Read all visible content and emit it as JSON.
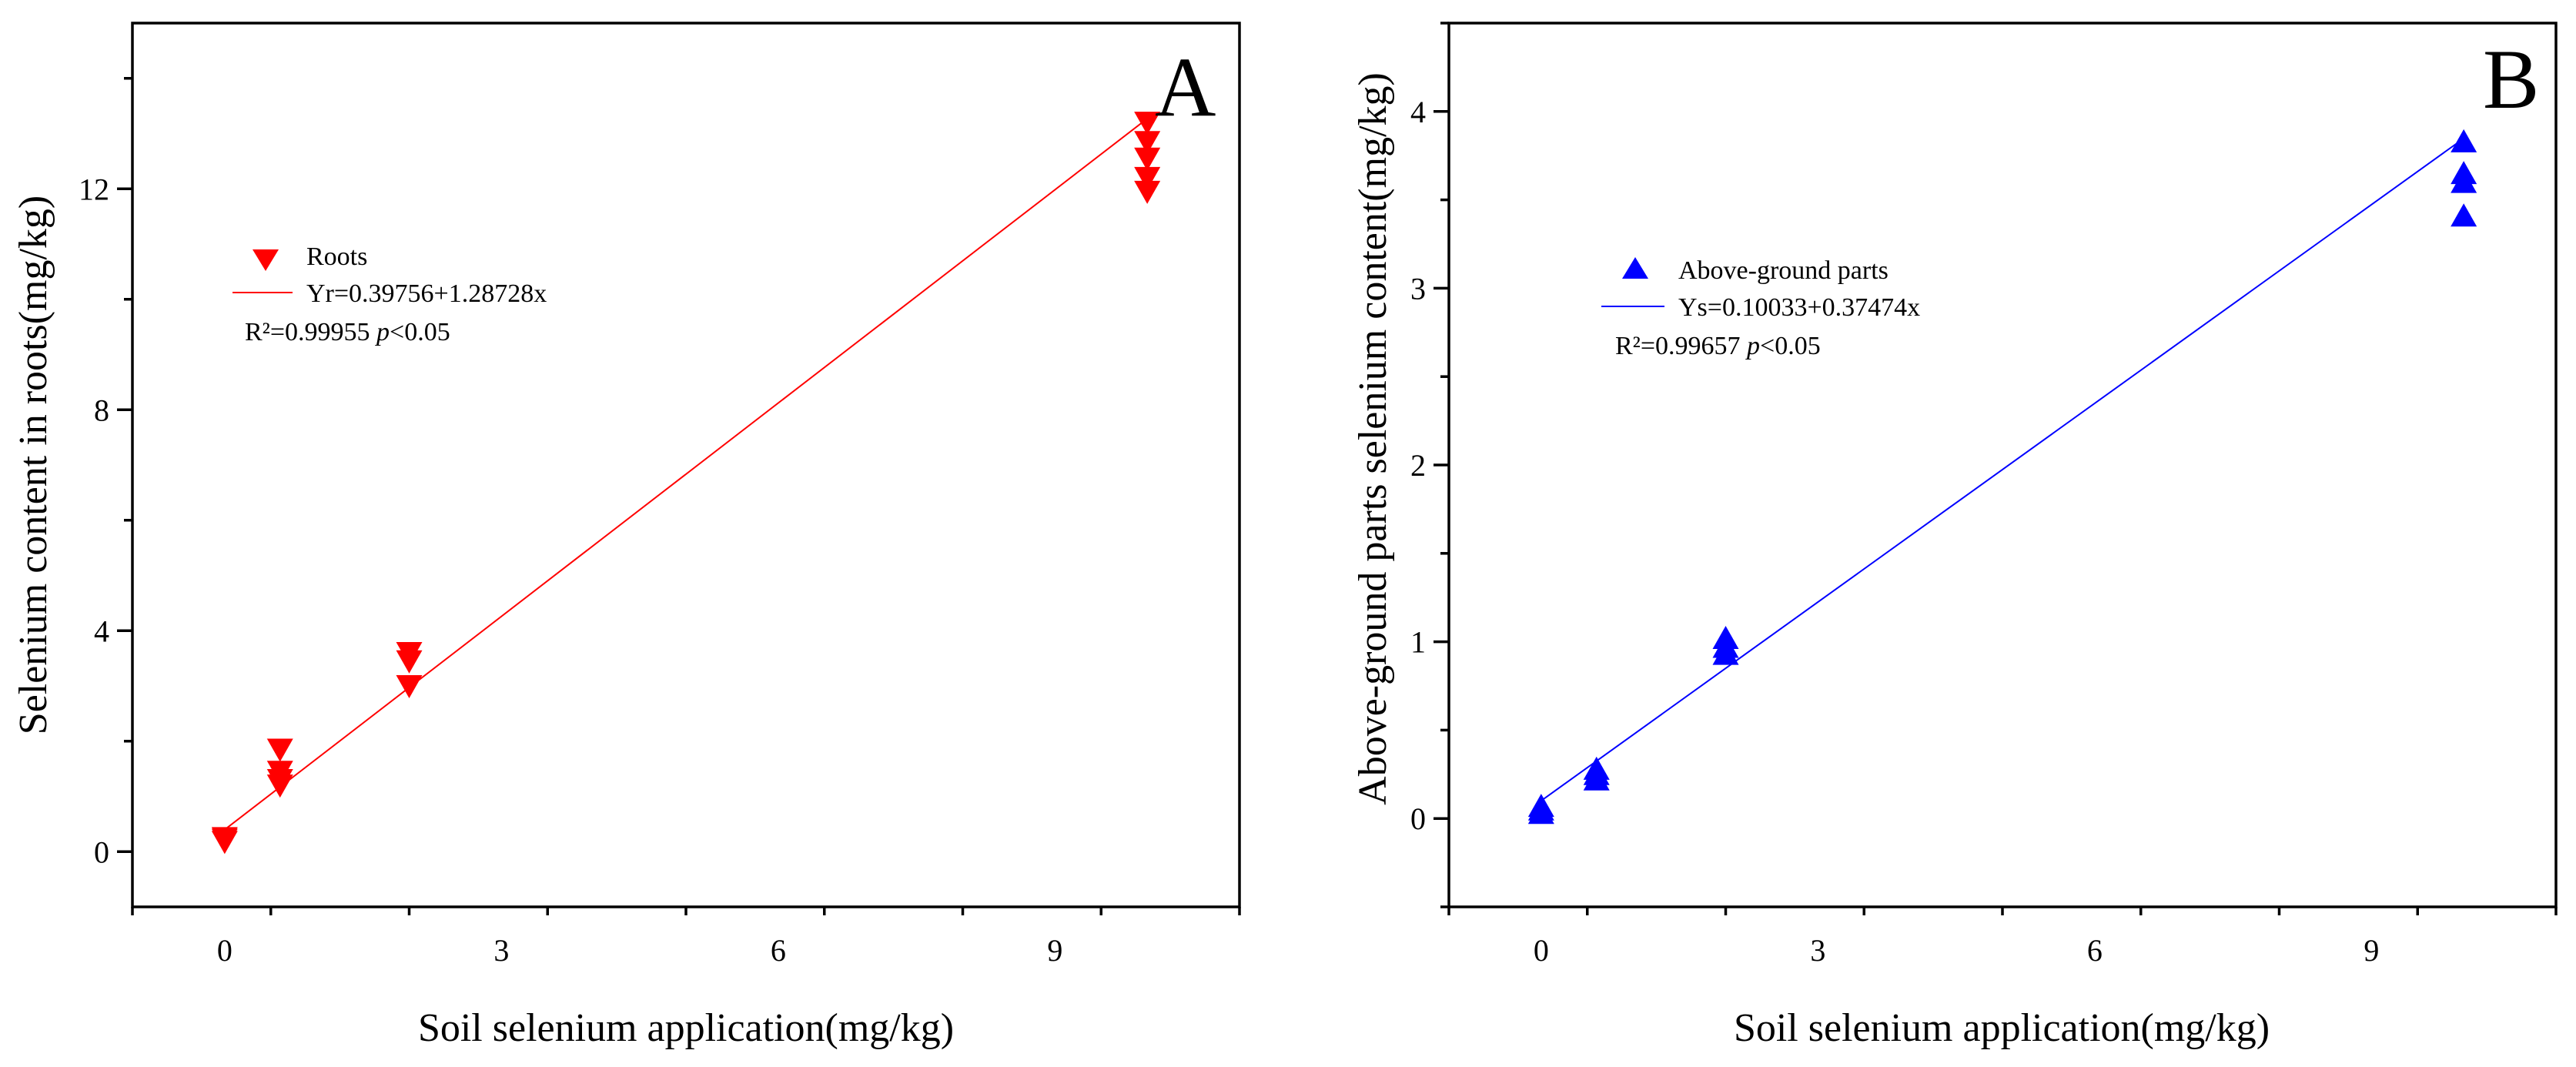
{
  "chart_data": [
    {
      "type": "scatter",
      "panel_label": "A",
      "xlabel": "Soil selenium application(mg/kg)",
      "ylabel": "Selenium content in roots(mg/kg)",
      "xlim": [
        -1,
        11
      ],
      "ylim": [
        -1,
        15
      ],
      "xticks": [
        "0",
        "3",
        "6",
        "9"
      ],
      "yticks": [
        "0",
        "4",
        "8",
        "12"
      ],
      "marker": "triangle-down",
      "color": "#ff0000",
      "series": [
        {
          "name": "Roots",
          "points": [
            {
              "x": 0,
              "y": 0.18
            },
            {
              "x": 0,
              "y": 0.22
            },
            {
              "x": 0,
              "y": 0.25
            },
            {
              "x": 0.6,
              "y": 1.85
            },
            {
              "x": 0.6,
              "y": 1.45
            },
            {
              "x": 0.6,
              "y": 1.3
            },
            {
              "x": 0.6,
              "y": 1.2
            },
            {
              "x": 2,
              "y": 3.6
            },
            {
              "x": 2,
              "y": 3.45
            },
            {
              "x": 2,
              "y": 3.0
            },
            {
              "x": 10,
              "y": 13.2
            },
            {
              "x": 10,
              "y": 12.85
            },
            {
              "x": 10,
              "y": 12.55
            },
            {
              "x": 10,
              "y": 12.2
            },
            {
              "x": 10,
              "y": 11.95
            }
          ]
        }
      ],
      "fit": {
        "intercept": 0.39756,
        "slope": 1.28728,
        "x_range": [
          0,
          10
        ],
        "label": "Yr=0.39756+1.28728x"
      },
      "legend": {
        "series_label": "Roots",
        "stat_prefix": "R²=0.99955 ",
        "p_symbol": "p",
        "stat_suffix": "<0.05",
        "placement": "upper-left"
      }
    },
    {
      "type": "scatter",
      "panel_label": "B",
      "xlabel": "Soil selenium application(mg/kg)",
      "ylabel": "Above-ground parts selenium content(mg/kg)",
      "xlim": [
        -1,
        11
      ],
      "ylim": [
        -0.5,
        4.5
      ],
      "xticks": [
        "0",
        "3",
        "6",
        "9"
      ],
      "yticks": [
        "0",
        "1",
        "2",
        "3",
        "4"
      ],
      "marker": "triangle-up",
      "color": "#0000ff",
      "series": [
        {
          "name": "Above-ground parts",
          "points": [
            {
              "x": 0,
              "y": 0.03
            },
            {
              "x": 0,
              "y": 0.05
            },
            {
              "x": 0,
              "y": 0.07
            },
            {
              "x": 0.6,
              "y": 0.22
            },
            {
              "x": 0.6,
              "y": 0.25
            },
            {
              "x": 0.6,
              "y": 0.28
            },
            {
              "x": 2,
              "y": 0.93
            },
            {
              "x": 2,
              "y": 0.97
            },
            {
              "x": 2,
              "y": 1.02
            },
            {
              "x": 10,
              "y": 3.83
            },
            {
              "x": 10,
              "y": 3.65
            },
            {
              "x": 10,
              "y": 3.6
            },
            {
              "x": 10,
              "y": 3.41
            }
          ]
        }
      ],
      "fit": {
        "intercept": 0.10033,
        "slope": 0.37474,
        "x_range": [
          0,
          10
        ],
        "label": "Ys=0.10033+0.37474x"
      },
      "legend": {
        "series_label": "Above-ground parts",
        "stat_prefix": "R²=0.99657 ",
        "p_symbol": "p",
        "stat_suffix": "<0.05",
        "placement": "upper-left"
      }
    }
  ]
}
